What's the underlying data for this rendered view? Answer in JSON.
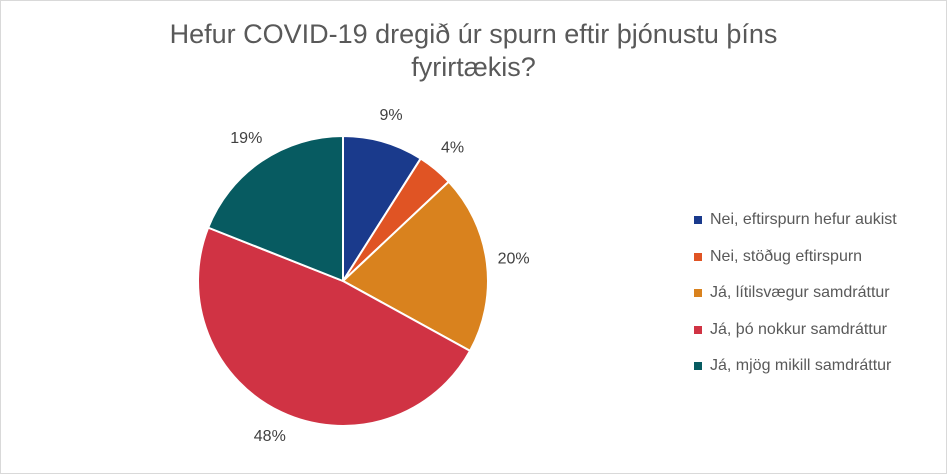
{
  "chart_data": {
    "type": "pie",
    "title_lines": [
      "Hefur COVID-19 dregið úr spurn eftir þjónustu þíns",
      "fyrirtækis?"
    ],
    "categories": [
      "Nei, eftirspurn hefur aukist",
      "Nei, stöðug eftirspurn",
      "Já, lítilsvægur samdráttur",
      "Já, þó nokkur samdráttur",
      "Já, mjög mikill samdráttur"
    ],
    "values": [
      9,
      4,
      20,
      48,
      19
    ],
    "labels": [
      "9%",
      "4%",
      "20%",
      "48%",
      "19%"
    ],
    "colors": [
      "#1a3a8c",
      "#e05424",
      "#d9821e",
      "#d03344",
      "#075b61"
    ],
    "legend_position": "right",
    "start_angle": "12 o'clock, clockwise",
    "slice_border_color": "#ffffff"
  }
}
